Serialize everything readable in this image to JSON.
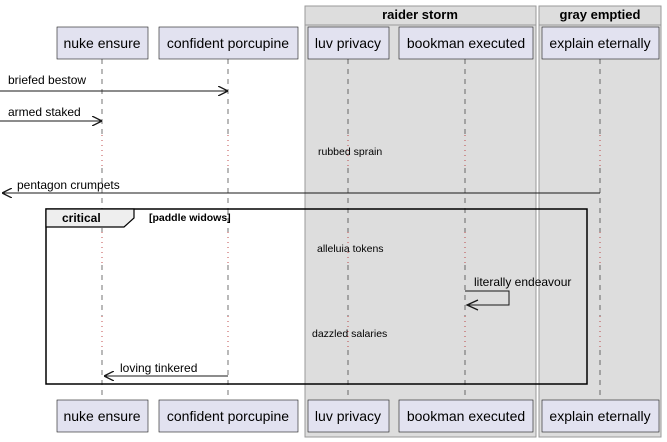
{
  "boxes": [
    {
      "id": "raider",
      "title": "raider storm"
    },
    {
      "id": "gray",
      "title": "gray emptied"
    }
  ],
  "participants": [
    {
      "id": "nuke",
      "label": "nuke ensure"
    },
    {
      "id": "porcupine",
      "label": "confident porcupine"
    },
    {
      "id": "luv",
      "label": "luv privacy"
    },
    {
      "id": "bookman",
      "label": "bookman executed"
    },
    {
      "id": "explain",
      "label": "explain eternally"
    }
  ],
  "messages": [
    {
      "id": "m1",
      "text": "briefed bestow"
    },
    {
      "id": "m2",
      "text": "armed staked"
    },
    {
      "id": "m3",
      "text": "pentagon crumpets"
    },
    {
      "id": "m4",
      "text": "literally endeavour"
    },
    {
      "id": "m5",
      "text": "loving tinkered"
    }
  ],
  "dividers": [
    {
      "id": "d1",
      "text": "rubbed sprain"
    },
    {
      "id": "d2",
      "text": "alleluia tokens"
    },
    {
      "id": "d3",
      "text": "dazzled salaries"
    }
  ],
  "fragment": {
    "keyword": "critical",
    "condition": "[paddle widows]"
  },
  "colors": {
    "participant_fill": "#E2E2F0",
    "participant_border": "#181818",
    "box_fill": "#DDDDDD",
    "box_border": "#999999",
    "line": "#181818",
    "divider_dots": "#B22222"
  }
}
